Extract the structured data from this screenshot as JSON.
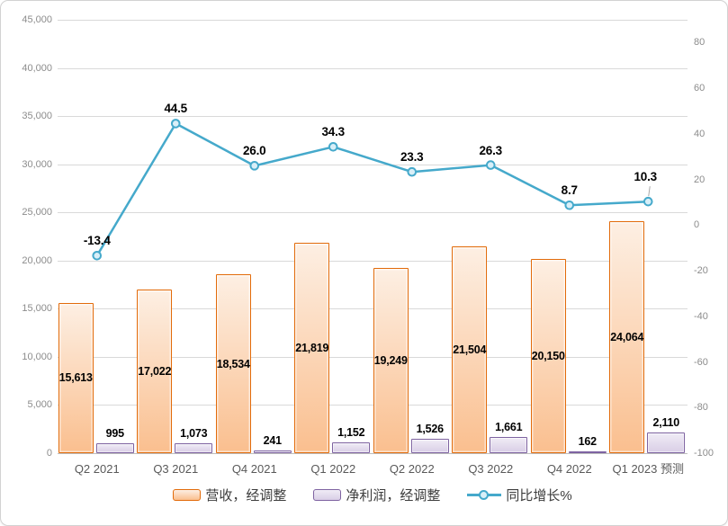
{
  "chart_data": {
    "type": "combo",
    "title": "",
    "categories": [
      "Q2 2021",
      "Q3 2021",
      "Q4 2021",
      "Q1 2022",
      "Q2 2022",
      "Q3 2022",
      "Q4 2022",
      "Q1 2023 预测"
    ],
    "series": [
      {
        "name": "营收，经调整",
        "type": "bar",
        "axis": "left",
        "values": [
          15613,
          17022,
          18534,
          21819,
          19249,
          21504,
          20150,
          24064
        ],
        "labels": [
          "15,613",
          "17,022",
          "18,534",
          "21,819",
          "19,249",
          "21,504",
          "20,150",
          "24,064"
        ]
      },
      {
        "name": "净利润，经调整",
        "type": "bar",
        "axis": "left",
        "values": [
          995,
          1073,
          241,
          1152,
          1526,
          1661,
          162,
          2110
        ],
        "labels": [
          "995",
          "1,073",
          "241",
          "1,152",
          "1,526",
          "1,661",
          "162",
          "2,110"
        ]
      },
      {
        "name": "同比增长%",
        "type": "line",
        "axis": "right",
        "values": [
          -13.4,
          44.5,
          26.0,
          34.3,
          23.3,
          26.3,
          8.7,
          10.3
        ],
        "labels": [
          "-13.4",
          "44.5",
          "26.0",
          "34.3",
          "23.3",
          "26.3",
          "8.7",
          "10.3"
        ]
      }
    ],
    "left_axis": {
      "min": 0,
      "max": 45000,
      "step": 5000,
      "tick_labels": [
        "0",
        "5,000",
        "10,000",
        "15,000",
        "20,000",
        "25,000",
        "30,000",
        "35,000",
        "40,000",
        "45,000"
      ]
    },
    "right_axis": {
      "min": -100,
      "max": 90,
      "step": 20,
      "tick_labels": [
        "-100",
        "-80",
        "-60",
        "-40",
        "-20",
        "0",
        "20",
        "40",
        "60",
        "80"
      ]
    },
    "grid": true,
    "legend_position": "bottom"
  },
  "colors": {
    "revenue_fill_top": "#FDEFE3",
    "revenue_fill_bottom": "#FABF8F",
    "revenue_border": "#E26B0A",
    "profit_fill_top": "#F0ECF6",
    "profit_fill_bottom": "#D9CEE6",
    "profit_border": "#7E63A1",
    "growth_line": "#45A9CB",
    "growth_marker_fill": "#D9EFF8",
    "gridline": "#D9D9D9",
    "axis_line": "#BDBDBD",
    "axis_text": "#8C8C8C",
    "x_label_text": "#595959",
    "data_label": "#000000"
  }
}
